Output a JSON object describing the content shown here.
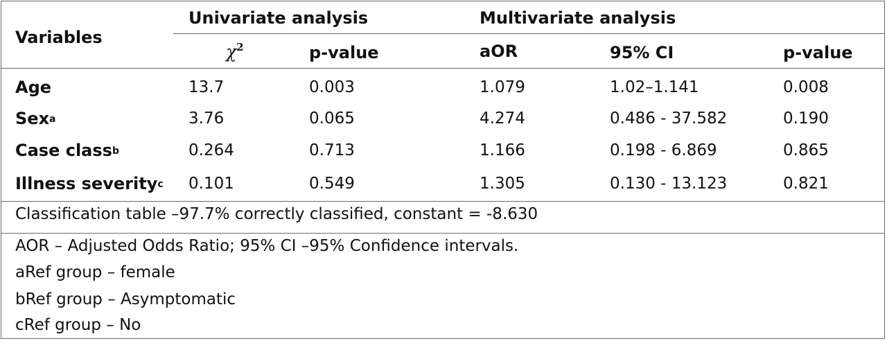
{
  "header": {
    "variables": "Variables",
    "univariate": "Univariate analysis",
    "multivariate": "Multivariate analysis",
    "chi_symbol": "χ",
    "chi_exponent": "2",
    "p_value_uni": "p-value",
    "aor": "aOR",
    "ci": "95% CI",
    "p_value_multi": "p-value"
  },
  "rows": [
    {
      "label": "Age",
      "sup": "",
      "chi2": "13.7",
      "p_uni": "0.003",
      "aor": "1.079",
      "ci": "1.02–1.141",
      "p_multi": "0.008"
    },
    {
      "label": "Sex",
      "sup": "a",
      "chi2": "3.76",
      "p_uni": "0.065",
      "aor": "4.274",
      "ci": "0.486 - 37.582",
      "p_multi": "0.190"
    },
    {
      "label": "Case class",
      "sup": "b",
      "chi2": "0.264",
      "p_uni": "0.713",
      "aor": "1.166",
      "ci": "0.198 - 6.869",
      "p_multi": "0.865"
    },
    {
      "label": "Illness severity",
      "sup": "c",
      "chi2": "0.101",
      "p_uni": "0.549",
      "aor": "1.305",
      "ci": "0.130 - 13.123",
      "p_multi": "0.821"
    }
  ],
  "classification": "Classification table –97.7% correctly classified, constant = -8.630",
  "footnotes": [
    "AOR – Adjusted Odds Ratio; 95% CI –95% Confidence intervals.",
    "aRef group – female",
    "bRef group – Asymptomatic",
    "cRef group – No"
  ]
}
